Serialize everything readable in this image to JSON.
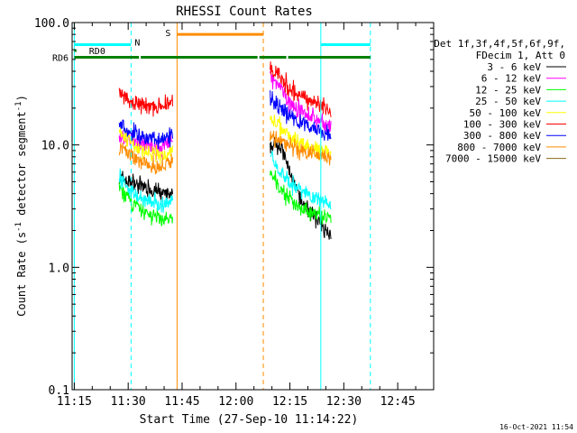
{
  "chart_data": {
    "type": "line",
    "title": "RHESSI Count Rates",
    "xlabel": "Start Time (27-Sep-10 11:14:22)",
    "ylabel_parts": [
      "Count Rate (s",
      "-1",
      " detector segment",
      "-1",
      ")"
    ],
    "y_scale": "log",
    "ylim": [
      0.1,
      100.0
    ],
    "y_ticks": [
      0.1,
      1.0,
      10.0,
      100.0
    ],
    "y_tick_labels": [
      "0.1",
      "1.0",
      "10.0",
      "100.0"
    ],
    "xlim_min": [
      674.4,
      775
    ],
    "x_ticks_min": [
      675,
      690,
      705,
      720,
      735,
      750,
      765
    ],
    "x_tick_labels": [
      "11:15",
      "11:30",
      "11:45",
      "12:00",
      "12:15",
      "12:30",
      "12:45"
    ],
    "grid": false,
    "legend_position": "right",
    "legend_header": [
      "Det 1f,3f,4f,5f,6f,9f,",
      "FDecim 1, Att 0"
    ],
    "series": [
      {
        "name": "3 - 6 keV",
        "color": "#000000",
        "seg1": [
          5.5,
          5.0,
          4.7,
          4.4,
          4.0,
          3.8
        ],
        "seg2": [
          9.5,
          10.5,
          6.0,
          3.5,
          2.8,
          2.2,
          1.9
        ]
      },
      {
        "name": "6 - 12 keV",
        "color": "#ff00ff",
        "seg1": [
          11.5,
          11.0,
          10.0,
          9.8,
          9.5,
          11.0
        ],
        "seg2": [
          35.0,
          30.0,
          22.0,
          19.0,
          17.0,
          15.0,
          14.0
        ]
      },
      {
        "name": "12 - 25 keV",
        "color": "#00ff00",
        "seg1": [
          4.5,
          3.5,
          3.0,
          2.7,
          2.5,
          2.4
        ],
        "seg2": [
          6.0,
          4.5,
          3.6,
          3.1,
          2.8,
          2.6,
          2.4
        ]
      },
      {
        "name": "25 - 50 keV",
        "color": "#00ffff",
        "seg1": [
          5.5,
          4.5,
          3.8,
          3.4,
          3.2,
          3.5
        ],
        "seg2": [
          9.0,
          6.0,
          5.0,
          4.3,
          3.8,
          3.5,
          3.3
        ]
      },
      {
        "name": "50 - 100 keV",
        "color": "#ffff00",
        "seg1": [
          13.0,
          11.0,
          9.0,
          8.5,
          8.0,
          9.0
        ],
        "seg2": [
          17.0,
          14.0,
          12.0,
          10.5,
          9.5,
          9.0,
          8.5
        ]
      },
      {
        "name": "100 - 300 keV",
        "color": "#ff0000",
        "seg1": [
          27.0,
          24.0,
          22.0,
          21.0,
          20.0,
          23.0
        ],
        "seg2": [
          42.0,
          36.0,
          28.0,
          25.0,
          23.0,
          21.0,
          19.5
        ]
      },
      {
        "name": "300 - 800 keV",
        "color": "#0000ff",
        "seg1": [
          15.0,
          13.0,
          12.0,
          11.5,
          11.0,
          12.5
        ],
        "seg2": [
          25.0,
          20.0,
          17.0,
          15.0,
          14.0,
          13.0,
          12.0
        ]
      },
      {
        "name": "800 - 7000 keV",
        "color": "#ff8c00",
        "seg1": [
          9.5,
          8.5,
          7.5,
          7.0,
          6.5,
          7.5
        ],
        "seg2": [
          12.0,
          11.0,
          10.0,
          9.0,
          8.5,
          8.2,
          7.8
        ]
      },
      {
        "name": "7000 - 15000 keV",
        "color": "#8b6914",
        "seg1": [],
        "seg2": []
      }
    ],
    "seg1_x_min": [
      687.5,
      690,
      693,
      696,
      699,
      702.5
    ],
    "seg2_x_min": [
      729.5,
      732,
      735,
      738,
      741,
      744,
      746.5
    ],
    "vlines": [
      {
        "x": 675,
        "color": "#00ffff",
        "dashed": false
      },
      {
        "x": 690.8,
        "color": "#00ffff",
        "dashed": true
      },
      {
        "x": 703.6,
        "color": "#ff8c00",
        "dashed": false
      },
      {
        "x": 727.6,
        "color": "#ff8c00",
        "dashed": true
      },
      {
        "x": 743.6,
        "color": "#00ffff",
        "dashed": false
      },
      {
        "x": 757.4,
        "color": "#00ffff",
        "dashed": true
      }
    ],
    "bars": [
      {
        "label": "",
        "color": "#00ffff",
        "y": 66,
        "x0": 675,
        "x1": 690.8
      },
      {
        "label": "",
        "color": "#00ffff",
        "y": 66,
        "x0": 743.6,
        "x1": 757.4
      },
      {
        "label": "RD0",
        "color": "#008000",
        "y": 59,
        "x0": 675,
        "x1": 675.6
      },
      {
        "label": "RD6",
        "color": "#008000",
        "y": 52,
        "x0": 675,
        "x1": 693
      },
      {
        "label": "",
        "color": "#008000",
        "y": 52,
        "x0": 693.5,
        "x1": 726
      },
      {
        "label": "",
        "color": "#008000",
        "y": 52,
        "x0": 726.5,
        "x1": 734
      },
      {
        "label": "",
        "color": "#008000",
        "y": 52,
        "x0": 734.5,
        "x1": 757.4
      },
      {
        "label": "S",
        "color": "#ff8c00",
        "y": 80,
        "x0": 703.6,
        "x1": 727.6
      }
    ],
    "marker_N": {
      "label": "N",
      "color": "#00ffff",
      "x": 690.8
    },
    "timestamp": "16-Oct-2021 11:54"
  }
}
